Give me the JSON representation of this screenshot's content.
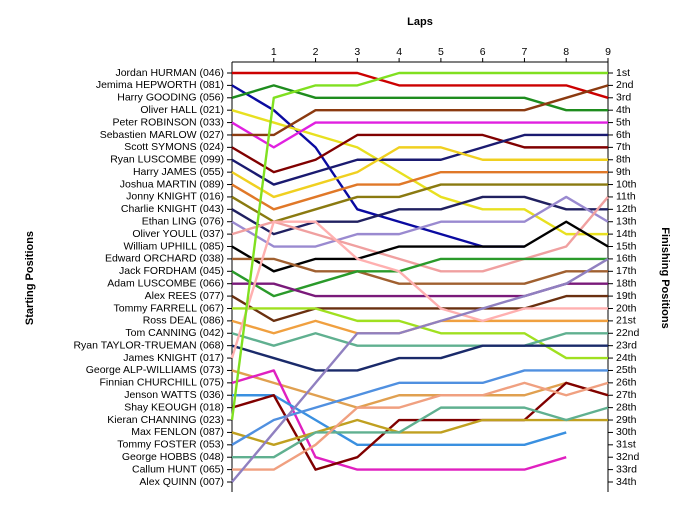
{
  "chart_data": {
    "type": "line",
    "x_label": "Laps",
    "y_label": "Starting Positions",
    "y2_label": "Finishing Positions",
    "x": [
      0,
      1,
      2,
      3,
      4,
      5,
      6,
      7,
      8,
      9
    ],
    "xlim": [
      0,
      9
    ],
    "xticks": [
      1,
      2,
      3,
      4,
      5,
      6,
      7,
      8,
      9
    ],
    "ylim": [
      34,
      1
    ],
    "y2lim": [
      34,
      1
    ],
    "y2ticks": [
      {
        "value": 1,
        "label": "1st"
      },
      {
        "value": 2,
        "label": "2nd"
      },
      {
        "value": 3,
        "label": "3rd"
      },
      {
        "value": 4,
        "label": "4th"
      },
      {
        "value": 5,
        "label": "5th"
      },
      {
        "value": 6,
        "label": "6th"
      },
      {
        "value": 7,
        "label": "7th"
      },
      {
        "value": 8,
        "label": "8th"
      },
      {
        "value": 9,
        "label": "9th"
      },
      {
        "value": 10,
        "label": "10th"
      },
      {
        "value": 11,
        "label": "11th"
      },
      {
        "value": 12,
        "label": "12th"
      },
      {
        "value": 13,
        "label": "13th"
      },
      {
        "value": 14,
        "label": "14th"
      },
      {
        "value": 15,
        "label": "15th"
      },
      {
        "value": 16,
        "label": "16th"
      },
      {
        "value": 17,
        "label": "17th"
      },
      {
        "value": 18,
        "label": "18th"
      },
      {
        "value": 19,
        "label": "19th"
      },
      {
        "value": 20,
        "label": "20th"
      },
      {
        "value": 21,
        "label": "21st"
      },
      {
        "value": 22,
        "label": "22nd"
      },
      {
        "value": 23,
        "label": "23rd"
      },
      {
        "value": 24,
        "label": "24th"
      },
      {
        "value": 25,
        "label": "25th"
      },
      {
        "value": 26,
        "label": "26th"
      },
      {
        "value": 27,
        "label": "27th"
      },
      {
        "value": 28,
        "label": "28th"
      },
      {
        "value": 29,
        "label": "29th"
      },
      {
        "value": 30,
        "label": "30th"
      },
      {
        "value": 31,
        "label": "31st"
      },
      {
        "value": 32,
        "label": "32nd"
      },
      {
        "value": 33,
        "label": "33rd"
      },
      {
        "value": 34,
        "label": "34th"
      }
    ],
    "series": [
      {
        "name": "Jordan HURMAN (046)",
        "color": "#cc0000",
        "values": [
          1,
          1,
          1,
          1,
          2,
          2,
          2,
          2,
          2,
          3
        ]
      },
      {
        "name": "Jemima HEPWORTH (081)",
        "color": "#0a0aa0",
        "values": [
          2,
          4,
          7,
          12,
          13,
          14,
          15,
          15,
          null,
          null
        ]
      },
      {
        "name": "Harry GOODING (056)",
        "color": "#1e8c1e",
        "values": [
          3,
          2,
          3,
          3,
          3,
          3,
          3,
          3,
          4,
          4
        ]
      },
      {
        "name": "Oliver HALL (021)",
        "color": "#e8e020",
        "values": [
          4,
          5,
          6,
          7,
          9,
          11,
          12,
          12,
          14,
          14
        ]
      },
      {
        "name": "Peter ROBINSON (033)",
        "color": "#e020e0",
        "values": [
          5,
          7,
          5,
          5,
          5,
          5,
          5,
          5,
          5,
          5
        ]
      },
      {
        "name": "Sebastien MARLOW (027)",
        "color": "#8b3a10",
        "values": [
          6,
          6,
          4,
          4,
          4,
          4,
          4,
          4,
          3,
          2
        ]
      },
      {
        "name": "Scott SYMONS (024)",
        "color": "#800000",
        "values": [
          7,
          9,
          8,
          6,
          6,
          6,
          6,
          7,
          7,
          7
        ]
      },
      {
        "name": "Ryan LUSCOMBE (099)",
        "color": "#1a1a70",
        "values": [
          8,
          10,
          9,
          8,
          8,
          8,
          7,
          6,
          6,
          6
        ]
      },
      {
        "name": "Harry JAMES (055)",
        "color": "#f0d020",
        "values": [
          9,
          11,
          10,
          9,
          7,
          7,
          8,
          8,
          8,
          8
        ]
      },
      {
        "name": "Joshua MARTIN (089)",
        "color": "#e07828",
        "values": [
          10,
          12,
          11,
          10,
          10,
          9,
          9,
          9,
          9,
          9
        ]
      },
      {
        "name": "Jonny KNIGHT (016)",
        "color": "#8a7a10",
        "values": [
          11,
          13,
          12,
          11,
          11,
          10,
          10,
          10,
          10,
          10
        ]
      },
      {
        "name": "Charlie KNIGHT (043)",
        "color": "#202060",
        "values": [
          12,
          14,
          13,
          13,
          12,
          12,
          11,
          11,
          12,
          12
        ]
      },
      {
        "name": "Ethan LING (076)",
        "color": "#9a8ad0",
        "values": [
          13,
          15,
          15,
          14,
          14,
          13,
          13,
          13,
          11,
          13
        ]
      },
      {
        "name": "Oliver YOULL (037)",
        "color": "#f0a0a0",
        "values": [
          14,
          13,
          14,
          15,
          16,
          17,
          17,
          16,
          15,
          11
        ]
      },
      {
        "name": "William UPHILL (085)",
        "color": "#000000",
        "values": [
          15,
          17,
          16,
          16,
          15,
          15,
          15,
          15,
          13,
          15
        ]
      },
      {
        "name": "Edward ORCHARD (038)",
        "color": "#a06030",
        "values": [
          16,
          16,
          17,
          17,
          18,
          18,
          18,
          18,
          17,
          17
        ]
      },
      {
        "name": "Jack FORDHAM (045)",
        "color": "#2a9a2a",
        "values": [
          17,
          19,
          18,
          17,
          17,
          16,
          16,
          16,
          16,
          16
        ]
      },
      {
        "name": "Adam LUSCOMBE (066)",
        "color": "#7a1a7a",
        "values": [
          18,
          18,
          19,
          19,
          19,
          19,
          19,
          19,
          18,
          18
        ]
      },
      {
        "name": "Alex REES (077)",
        "color": "#6a3010",
        "values": [
          19,
          21,
          20,
          20,
          20,
          20,
          20,
          20,
          19,
          19
        ]
      },
      {
        "name": "Tommy FARRELL (067)",
        "color": "#a0e020",
        "values": [
          20,
          20,
          20,
          21,
          21,
          22,
          22,
          22,
          24,
          24
        ]
      },
      {
        "name": "Ross DEAL (086)",
        "color": "#f0a040",
        "values": [
          21,
          22,
          21,
          22,
          22,
          21,
          21,
          21,
          21,
          21
        ]
      },
      {
        "name": "Tom CANNING (042)",
        "color": "#60b090",
        "values": [
          22,
          23,
          22,
          23,
          23,
          23,
          23,
          23,
          22,
          22
        ]
      },
      {
        "name": "Ryan TAYLOR-TRUEMAN (068)",
        "color": "#1a2a6a",
        "values": [
          23,
          24,
          25,
          25,
          24,
          24,
          23,
          23,
          23,
          23
        ]
      },
      {
        "name": "James KNIGHT (017)",
        "color": "#ffb0b0",
        "values": [
          24,
          13,
          13,
          16,
          17,
          20,
          21,
          20,
          20,
          20
        ]
      },
      {
        "name": "George ALP-WILLIAMS (073)",
        "color": "#e0a050",
        "values": [
          25,
          26,
          27,
          28,
          27,
          27,
          27,
          27,
          26,
          27
        ]
      },
      {
        "name": "Finnian CHURCHILL (075)",
        "color": "#e020c0",
        "values": [
          26,
          25,
          32,
          33,
          33,
          33,
          33,
          33,
          32,
          null
        ]
      },
      {
        "name": "Jenson WATTS (036)",
        "color": "#3a90e0",
        "values": [
          27,
          27,
          29,
          31,
          31,
          31,
          31,
          31,
          30,
          null
        ]
      },
      {
        "name": "Shay KEOUGH (018)",
        "color": "#800000",
        "values": [
          28,
          27,
          33,
          32,
          29,
          29,
          29,
          29,
          26,
          27
        ]
      },
      {
        "name": "Kieran CHANNING (023)",
        "color": "#80e020",
        "values": [
          29,
          3,
          2,
          2,
          1,
          1,
          1,
          1,
          1,
          1
        ]
      },
      {
        "name": "Max FENLON (087)",
        "color": "#c0a020",
        "values": [
          30,
          31,
          30,
          29,
          30,
          30,
          29,
          29,
          29,
          29
        ]
      },
      {
        "name": "Tommy FOSTER (053)",
        "color": "#5090e0",
        "values": [
          31,
          29,
          28,
          27,
          26,
          26,
          26,
          25,
          25,
          25
        ]
      },
      {
        "name": "George HOBBS (048)",
        "color": "#60b090",
        "values": [
          32,
          32,
          30,
          30,
          30,
          28,
          28,
          28,
          29,
          28
        ]
      },
      {
        "name": "Callum HUNT (065)",
        "color": "#f0a080",
        "values": [
          33,
          33,
          31,
          28,
          28,
          27,
          27,
          26,
          27,
          26
        ]
      },
      {
        "name": "Alex QUINN (007)",
        "color": "#9080c0",
        "values": [
          34,
          30,
          26,
          22,
          22,
          21,
          20,
          19,
          18,
          16
        ]
      }
    ]
  }
}
